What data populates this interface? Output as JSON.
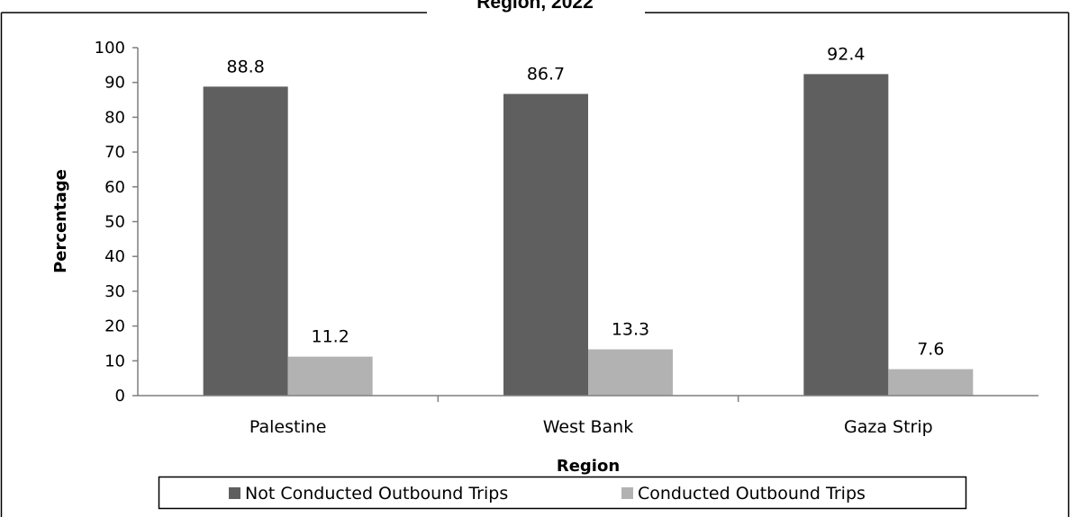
{
  "chart_data": {
    "type": "bar",
    "title": "Region, 2022",
    "categories": [
      "Palestine",
      "West Bank",
      "Gaza Strip"
    ],
    "series": [
      {
        "name": "Not Conducted Outbound Trips",
        "values": [
          88.8,
          86.7,
          92.4
        ],
        "color": "#5f5f5f"
      },
      {
        "name": "Conducted Outbound Trips",
        "values": [
          11.2,
          13.3,
          7.6
        ],
        "color": "#b2b2b2"
      }
    ],
    "xlabel": "Region",
    "ylabel": "Percentage",
    "ylim": [
      0,
      100
    ],
    "yticks": [
      "0",
      "10",
      "20",
      "30",
      "40",
      "50",
      "60",
      "70",
      "80",
      "90",
      "100"
    ],
    "data_labels": [
      [
        "88.8",
        "86.7",
        "92.4"
      ],
      [
        "11.2",
        "13.3",
        "7.6"
      ]
    ],
    "grid": false,
    "legend_position": "bottom"
  }
}
